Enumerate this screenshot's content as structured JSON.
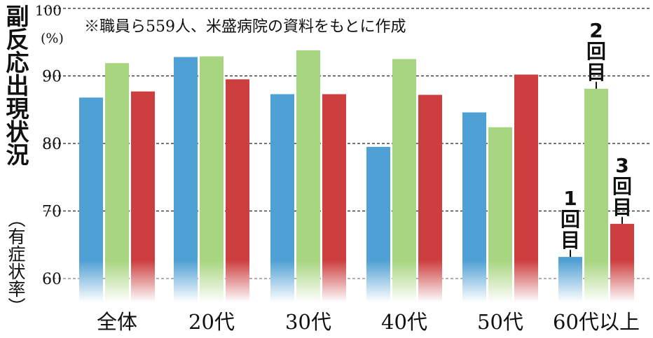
{
  "ylabel": "副反応出現状況",
  "ylabel_sub": "（有症状率）",
  "unit": "(%)",
  "note": "※職員ら559人、米盛病院の資料をもとに作成",
  "colors": {
    "dose1": "#4fa0d4",
    "dose2": "#a8d57f",
    "dose3": "#cd3f3f"
  },
  "chart_data": {
    "type": "bar",
    "categories": [
      "全体",
      "20代",
      "30代",
      "40代",
      "50代",
      "60代以上"
    ],
    "series": [
      {
        "name": "1回目",
        "values": [
          86.8,
          92.8,
          87.3,
          79.5,
          84.6,
          63.2
        ]
      },
      {
        "name": "2回目",
        "values": [
          91.9,
          92.9,
          93.8,
          92.5,
          82.4,
          88.1
        ]
      },
      {
        "name": "3回目",
        "values": [
          87.7,
          89.5,
          87.3,
          87.2,
          90.2,
          68.1
        ]
      }
    ],
    "ylim": [
      60,
      100
    ],
    "yticks": [
      60,
      70,
      80,
      90,
      100
    ],
    "grid": true,
    "grid_style": "dashed"
  }
}
